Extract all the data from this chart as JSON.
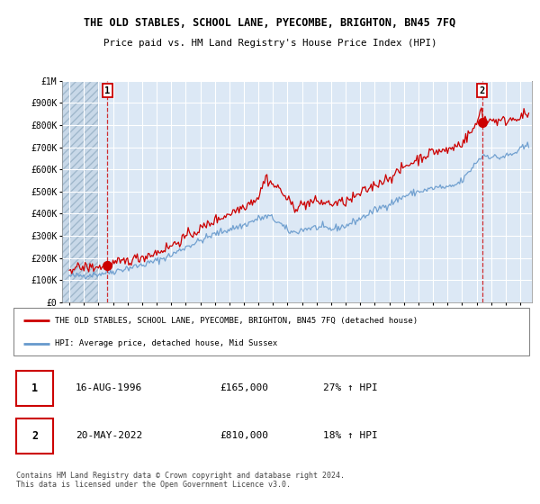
{
  "title": "THE OLD STABLES, SCHOOL LANE, PYECOMBE, BRIGHTON, BN45 7FQ",
  "subtitle": "Price paid vs. HM Land Registry's House Price Index (HPI)",
  "ylim": [
    0,
    1000000
  ],
  "yticks": [
    0,
    100000,
    200000,
    300000,
    400000,
    500000,
    600000,
    700000,
    800000,
    900000,
    1000000
  ],
  "ytick_labels": [
    "£0",
    "£100K",
    "£200K",
    "£300K",
    "£400K",
    "£500K",
    "£600K",
    "£700K",
    "£800K",
    "£900K",
    "£1M"
  ],
  "xlim_start": 1993.5,
  "xlim_end": 2025.8,
  "xticks": [
    1994,
    1995,
    1996,
    1997,
    1998,
    1999,
    2000,
    2001,
    2002,
    2003,
    2004,
    2005,
    2006,
    2007,
    2008,
    2009,
    2010,
    2011,
    2012,
    2013,
    2014,
    2015,
    2016,
    2017,
    2018,
    2019,
    2020,
    2021,
    2022,
    2023,
    2024,
    2025
  ],
  "background_color": "#ffffff",
  "plot_bg_color": "#dce8f5",
  "grid_color": "#ffffff",
  "hpi_color": "#6699cc",
  "price_color": "#cc0000",
  "marker_color": "#cc0000",
  "hatch_color": "#c8d8e8",
  "sale1_x": 1996.62,
  "sale1_y": 165000,
  "sale1_label": "1",
  "sale2_x": 2022.38,
  "sale2_y": 810000,
  "sale2_label": "2",
  "legend_line1": "THE OLD STABLES, SCHOOL LANE, PYECOMBE, BRIGHTON, BN45 7FQ (detached house)",
  "legend_line2": "HPI: Average price, detached house, Mid Sussex",
  "table_row1_num": "1",
  "table_row1_date": "16-AUG-1996",
  "table_row1_price": "£165,000",
  "table_row1_hpi": "27% ↑ HPI",
  "table_row2_num": "2",
  "table_row2_date": "20-MAY-2022",
  "table_row2_price": "£810,000",
  "table_row2_hpi": "18% ↑ HPI",
  "footer": "Contains HM Land Registry data © Crown copyright and database right 2024.\nThis data is licensed under the Open Government Licence v3.0."
}
